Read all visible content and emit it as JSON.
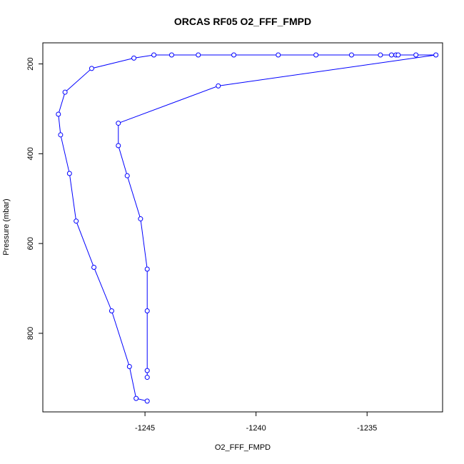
{
  "chart_data": {
    "type": "line",
    "title": "ORCAS RF05 O2_FFF_FMPD",
    "xlabel": "O2_FFF_FMPD",
    "ylabel": "Pressure (mbar)",
    "xlim": [
      -1249.6,
      -1231.6
    ],
    "ylim": [
      975,
      153
    ],
    "y_reversed": true,
    "x_ticks": [
      -1245,
      -1240,
      -1235
    ],
    "y_ticks": [
      200,
      400,
      600,
      800
    ],
    "grid": false,
    "marker": "open-circle",
    "color": "#0000ff",
    "series": [
      {
        "points": [
          {
            "x": -1244.9,
            "y": 951
          },
          {
            "x": -1245.4,
            "y": 945
          },
          {
            "x": -1245.7,
            "y": 874
          },
          {
            "x": -1246.5,
            "y": 750
          },
          {
            "x": -1247.3,
            "y": 653
          },
          {
            "x": -1248.1,
            "y": 550
          },
          {
            "x": -1248.4,
            "y": 444
          },
          {
            "x": -1248.8,
            "y": 358
          },
          {
            "x": -1248.9,
            "y": 312
          },
          {
            "x": -1248.6,
            "y": 263
          },
          {
            "x": -1247.4,
            "y": 210
          },
          {
            "x": -1245.5,
            "y": 187
          },
          {
            "x": -1244.6,
            "y": 180
          },
          {
            "x": -1243.8,
            "y": 180
          },
          {
            "x": -1242.6,
            "y": 180
          },
          {
            "x": -1241.0,
            "y": 180
          },
          {
            "x": -1239.0,
            "y": 180
          },
          {
            "x": -1237.3,
            "y": 180
          },
          {
            "x": -1235.7,
            "y": 180
          },
          {
            "x": -1234.4,
            "y": 180
          },
          {
            "x": -1233.9,
            "y": 180
          },
          {
            "x": -1233.7,
            "y": 180
          },
          {
            "x": -1233.6,
            "y": 180
          },
          {
            "x": -1232.8,
            "y": 180
          },
          {
            "x": -1231.9,
            "y": 180
          },
          {
            "x": -1241.7,
            "y": 249
          },
          {
            "x": -1246.2,
            "y": 332
          },
          {
            "x": -1246.2,
            "y": 382
          },
          {
            "x": -1245.8,
            "y": 449
          },
          {
            "x": -1245.2,
            "y": 545
          },
          {
            "x": -1244.9,
            "y": 657
          },
          {
            "x": -1244.9,
            "y": 750
          },
          {
            "x": -1244.9,
            "y": 883
          },
          {
            "x": -1244.9,
            "y": 898
          }
        ]
      }
    ]
  }
}
